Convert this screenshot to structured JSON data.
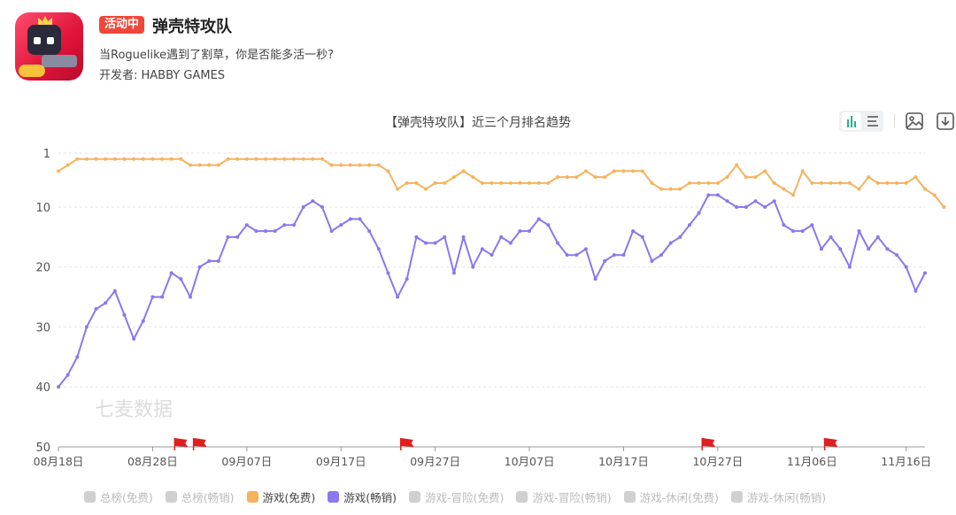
{
  "app": {
    "badge": "活动中",
    "title": "弹壳特攻队",
    "subtitle": "当Roguelike遇到了割草，你是否能多活一秒?",
    "developer": "开发者: HABBY GAMES"
  },
  "toolbar": {
    "view_toggle": "bar-chart-icon / list-icon",
    "save_image": "image-icon",
    "download": "download-icon"
  },
  "watermark": "七麦数据",
  "colors": {
    "free": "#f4b35f",
    "paid": "#8978ee",
    "inactive": "#d0d0d0",
    "flag": "#e01e1e",
    "badge": "#f0473a"
  },
  "chart_data": {
    "type": "line",
    "title": "【弹壳特攻队】近三个月排名趋势",
    "y_inverted": true,
    "ylim": [
      50,
      1
    ],
    "yticks": [
      1,
      10,
      20,
      30,
      40,
      50
    ],
    "x_start": "08-18",
    "x_tick_labels": [
      "08月18日",
      "08月28日",
      "09月07日",
      "09月17日",
      "09月27日",
      "10月07日",
      "10月17日",
      "10月27日",
      "11月06日",
      "11月16日"
    ],
    "grid": "horizontal-dashed",
    "series": [
      {
        "name": "游戏(免费)",
        "color": "#f4b35f",
        "values": [
          4,
          3,
          2,
          2,
          2,
          2,
          2,
          2,
          2,
          2,
          2,
          2,
          2,
          2,
          3,
          3,
          3,
          3,
          2,
          2,
          2,
          2,
          2,
          2,
          2,
          2,
          2,
          2,
          2,
          3,
          3,
          3,
          3,
          3,
          3,
          4,
          7,
          6,
          6,
          7,
          6,
          6,
          5,
          4,
          5,
          6,
          6,
          6,
          6,
          6,
          6,
          6,
          6,
          5,
          5,
          5,
          4,
          5,
          5,
          4,
          4,
          4,
          4,
          6,
          7,
          7,
          7,
          6,
          6,
          6,
          6,
          5,
          3,
          5,
          5,
          4,
          6,
          7,
          8,
          4,
          6,
          6,
          6,
          6,
          6,
          7,
          5,
          6,
          6,
          6,
          6,
          5,
          7,
          8,
          10
        ]
      },
      {
        "name": "游戏(畅销)",
        "color": "#8978ee",
        "values": [
          40,
          38,
          35,
          30,
          27,
          26,
          24,
          28,
          32,
          29,
          25,
          25,
          21,
          22,
          25,
          20,
          19,
          19,
          15,
          15,
          13,
          14,
          14,
          14,
          13,
          13,
          10,
          9,
          10,
          14,
          13,
          12,
          12,
          14,
          17,
          21,
          25,
          22,
          15,
          16,
          16,
          15,
          21,
          15,
          20,
          17,
          18,
          15,
          16,
          14,
          14,
          12,
          13,
          16,
          18,
          18,
          17,
          22,
          19,
          18,
          18,
          14,
          15,
          19,
          18,
          16,
          15,
          13,
          11,
          8,
          8,
          9,
          10,
          10,
          9,
          10,
          9,
          13,
          14,
          14,
          13,
          17,
          15,
          17,
          20,
          14,
          17,
          15,
          17,
          18,
          20,
          24,
          21
        ]
      }
    ],
    "event_flags": [
      "08-31",
      "09-02",
      "09-24",
      "10-26",
      "11-08"
    ]
  },
  "legend": [
    {
      "label": "总榜(免费)",
      "active": false
    },
    {
      "label": "总榜(畅销)",
      "active": false
    },
    {
      "label": "游戏(免费)",
      "active": true,
      "color": "#f4b35f"
    },
    {
      "label": "游戏(畅销)",
      "active": true,
      "color": "#8978ee"
    },
    {
      "label": "游戏-冒险(免费)",
      "active": false
    },
    {
      "label": "游戏-冒险(畅销)",
      "active": false
    },
    {
      "label": "游戏-休闲(免费)",
      "active": false
    },
    {
      "label": "游戏-休闲(畅销)",
      "active": false
    }
  ]
}
